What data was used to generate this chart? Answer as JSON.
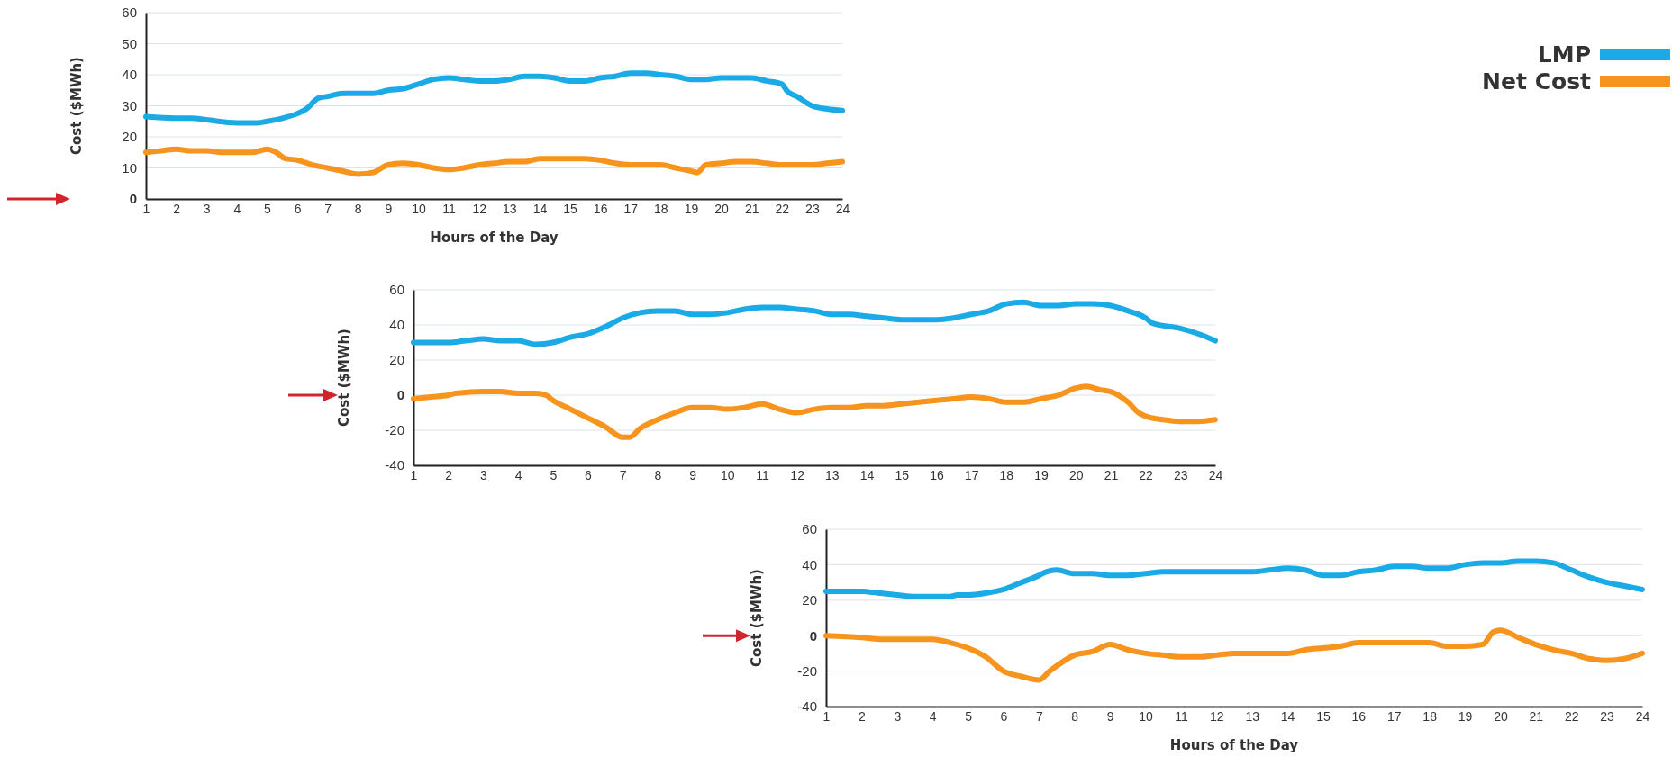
{
  "chart_data": [
    {
      "type": "line",
      "ylabel": "Cost ($MWh)",
      "xlabel": "Hours of the Day",
      "xlim": [
        1,
        24
      ],
      "xticks": [
        1,
        2,
        3,
        4,
        5,
        6,
        7,
        8,
        9,
        10,
        11,
        12,
        13,
        14,
        15,
        16,
        17,
        18,
        19,
        20,
        21,
        22,
        23,
        24
      ],
      "ylim": [
        0,
        60
      ],
      "yticks": [
        0,
        10,
        20,
        30,
        40,
        50,
        60
      ],
      "grid": "y",
      "legend": "top right",
      "series": [
        {
          "name": "LMP",
          "color": "#1aabe6",
          "x": [
            1,
            2,
            2.5,
            3,
            4,
            4.7,
            5,
            5.5,
            6,
            6.3,
            6.7,
            7,
            7.5,
            8,
            8.5,
            9,
            9.5,
            10,
            10.5,
            11,
            11.5,
            12,
            12.5,
            13,
            13.5,
            14,
            14.5,
            15,
            15.5,
            16,
            16.5,
            17,
            17.5,
            18,
            18.5,
            19,
            19.5,
            20,
            20.5,
            21,
            21.5,
            22,
            22.2,
            22.5,
            23,
            23.5,
            24
          ],
          "values": [
            26.5,
            26,
            26,
            25.5,
            24.5,
            24.5,
            25,
            26,
            27.5,
            29,
            32.5,
            33,
            34,
            34,
            34,
            35,
            35.5,
            37,
            38.5,
            39,
            38.5,
            38,
            38,
            38.5,
            39.5,
            39.5,
            39,
            38,
            38,
            39,
            39.5,
            40.5,
            40.5,
            40,
            39.5,
            38.5,
            38.5,
            39,
            39,
            39,
            38,
            37,
            34.5,
            33,
            30,
            29,
            28.5
          ]
        },
        {
          "name": "Net Cost",
          "color": "#f7941d",
          "x": [
            1,
            1.5,
            2,
            2.5,
            3,
            3.5,
            4,
            4.5,
            5,
            5.3,
            5.6,
            6,
            6.5,
            7,
            7.5,
            8,
            8.5,
            9,
            9.5,
            10,
            10.5,
            11,
            11.5,
            12,
            12.5,
            13,
            13.5,
            14,
            14.5,
            15,
            15.5,
            16,
            16.5,
            17,
            17.5,
            18,
            18.5,
            19,
            19.2,
            19.5,
            20,
            20.5,
            21,
            21.5,
            22,
            22.5,
            23,
            23.5,
            24
          ],
          "values": [
            15,
            15.5,
            16,
            15.5,
            15.5,
            15,
            15,
            15,
            16,
            15,
            13,
            12.5,
            11,
            10,
            9,
            8,
            8.5,
            11,
            11.5,
            11,
            10,
            9.5,
            10,
            11,
            11.5,
            12,
            12,
            13,
            13,
            13,
            13,
            12.5,
            11.5,
            11,
            11,
            11,
            10,
            9,
            8.5,
            11,
            11.5,
            12,
            12,
            11.5,
            11,
            11,
            11,
            11.5,
            12
          ]
        }
      ]
    },
    {
      "type": "line",
      "ylabel": "Cost ($MWh)",
      "xlim": [
        1,
        24
      ],
      "xticks": [
        1,
        2,
        3,
        4,
        5,
        6,
        7,
        8,
        9,
        10,
        11,
        12,
        13,
        14,
        15,
        16,
        17,
        18,
        19,
        20,
        21,
        22,
        23,
        24
      ],
      "ylim": [
        -40,
        60
      ],
      "yticks": [
        -40,
        -20,
        0,
        20,
        40,
        60
      ],
      "grid": "y",
      "series": [
        {
          "color": "#1aabe6",
          "x": [
            1,
            2,
            2.5,
            3,
            3.5,
            4,
            4.5,
            5,
            5.5,
            6,
            6.5,
            7,
            7.5,
            8,
            8.5,
            9,
            9.5,
            10,
            10.5,
            11,
            11.5,
            12,
            12.5,
            13,
            13.5,
            14,
            14.5,
            15,
            15.5,
            16,
            16.5,
            17,
            17.5,
            18,
            18.5,
            19,
            19.5,
            20,
            20.5,
            21,
            21.5,
            22,
            22.2,
            23,
            23.5,
            24
          ],
          "values": [
            30,
            30,
            31,
            32,
            31,
            31,
            29,
            30,
            33,
            35,
            39,
            44,
            47,
            48,
            48,
            46,
            46,
            47,
            49,
            50,
            50,
            49,
            48,
            46,
            46,
            45,
            44,
            43,
            43,
            43,
            44,
            46,
            48,
            52,
            53,
            51,
            51,
            52,
            52,
            51,
            48,
            44,
            41,
            38,
            35,
            31
          ]
        },
        {
          "color": "#f7941d",
          "x": [
            1,
            1.5,
            2,
            2.2,
            3,
            3.5,
            4,
            4.5,
            4.8,
            5,
            5.5,
            6,
            6.5,
            7,
            7.2,
            7.5,
            8,
            8.5,
            9,
            9.5,
            10,
            10.5,
            11,
            11.5,
            12,
            12.5,
            13,
            13.5,
            14,
            14.5,
            15,
            15.5,
            16,
            16.5,
            17,
            17.5,
            18,
            18.5,
            19,
            19.5,
            20,
            20.3,
            20.7,
            21,
            21.5,
            21.8,
            22,
            22.5,
            23,
            23.5,
            24
          ],
          "values": [
            -2,
            -1,
            0,
            1,
            2,
            2,
            1,
            1,
            0,
            -3,
            -8,
            -13,
            -18,
            -24,
            -24,
            -19,
            -14,
            -10,
            -7,
            -7,
            -8,
            -7,
            -5,
            -8,
            -10,
            -8,
            -7,
            -7,
            -6,
            -6,
            -5,
            -4,
            -3,
            -2,
            -1,
            -2,
            -4,
            -4,
            -2,
            0,
            4,
            5,
            3,
            2,
            -4,
            -10,
            -12,
            -14,
            -15,
            -15,
            -14
          ]
        }
      ]
    },
    {
      "type": "line",
      "ylabel": "Cost ($MWh)",
      "xlabel": "Hours of the Day",
      "xlim": [
        1,
        24
      ],
      "xticks": [
        1,
        2,
        3,
        4,
        5,
        6,
        7,
        8,
        9,
        10,
        11,
        12,
        13,
        14,
        15,
        16,
        17,
        18,
        19,
        20,
        21,
        22,
        23,
        24
      ],
      "ylim": [
        -40,
        60
      ],
      "yticks": [
        -40,
        -20,
        0,
        20,
        40,
        60
      ],
      "grid": "y",
      "series": [
        {
          "color": "#1aabe6",
          "x": [
            1,
            2,
            2.5,
            3,
            3.5,
            4,
            4.5,
            4.7,
            5,
            5.5,
            6,
            6.5,
            7,
            7.2,
            7.5,
            8,
            8.5,
            9,
            9.5,
            10,
            10.5,
            11,
            11.5,
            12,
            12.5,
            13,
            13.5,
            14,
            14.5,
            15,
            15.5,
            16,
            16.5,
            17,
            17.5,
            18,
            18.5,
            19,
            19.5,
            20,
            20.5,
            21,
            21.5,
            22,
            22.5,
            23,
            23.5,
            24
          ],
          "values": [
            25,
            25,
            24,
            23,
            22,
            22,
            22,
            23,
            23,
            24,
            26,
            30,
            34,
            36,
            37,
            35,
            35,
            34,
            34,
            35,
            36,
            36,
            36,
            36,
            36,
            36,
            37,
            38,
            37,
            34,
            34,
            36,
            37,
            39,
            39,
            38,
            38,
            40,
            41,
            41,
            42,
            42,
            41,
            37,
            33,
            30,
            28,
            26
          ]
        },
        {
          "color": "#f7941d",
          "x": [
            1,
            2,
            2.5,
            3,
            3.5,
            4,
            4.5,
            5,
            5.5,
            6,
            6.5,
            7,
            7.3,
            7.5,
            8,
            8.5,
            9,
            9.5,
            10,
            10.5,
            11,
            11.5,
            12,
            12.5,
            13,
            13.5,
            14,
            14.5,
            15,
            15.5,
            16,
            16.5,
            17,
            17.5,
            18,
            18.5,
            19,
            19.5,
            19.8,
            20,
            20.5,
            21,
            21.5,
            22,
            22.5,
            23,
            23.5,
            24
          ],
          "values": [
            0,
            -1,
            -2,
            -2,
            -2,
            -2,
            -4,
            -7,
            -12,
            -20,
            -23,
            -25,
            -20,
            -17,
            -11,
            -9,
            -5,
            -8,
            -10,
            -11,
            -12,
            -12,
            -11,
            -10,
            -10,
            -10,
            -10,
            -8,
            -7,
            -6,
            -4,
            -4,
            -4,
            -4,
            -4,
            -6,
            -6,
            -5,
            2,
            3,
            -1,
            -5,
            -8,
            -10,
            -13,
            -14,
            -13,
            -10
          ]
        }
      ]
    }
  ]
}
